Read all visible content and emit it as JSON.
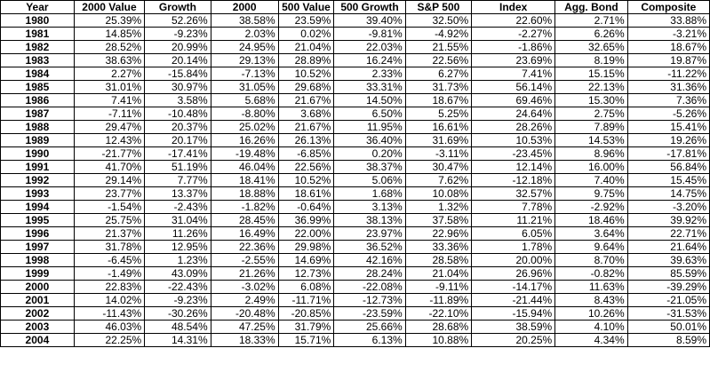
{
  "table": {
    "headers": [
      "Year",
      "2000 Value",
      "Growth",
      "2000",
      "500 Value",
      "500 Growth",
      "S&P 500",
      "Index",
      "Agg. Bond",
      "Composite"
    ],
    "rows": [
      [
        "1980",
        "25.39%",
        "52.26%",
        "38.58%",
        "23.59%",
        "39.40%",
        "32.50%",
        "22.60%",
        "2.71%",
        "33.88%"
      ],
      [
        "1981",
        "14.85%",
        "-9.23%",
        "2.03%",
        "0.02%",
        "-9.81%",
        "-4.92%",
        "-2.27%",
        "6.26%",
        "-3.21%"
      ],
      [
        "1982",
        "28.52%",
        "20.99%",
        "24.95%",
        "21.04%",
        "22.03%",
        "21.55%",
        "-1.86%",
        "32.65%",
        "18.67%"
      ],
      [
        "1983",
        "38.63%",
        "20.14%",
        "29.13%",
        "28.89%",
        "16.24%",
        "22.56%",
        "23.69%",
        "8.19%",
        "19.87%"
      ],
      [
        "1984",
        "2.27%",
        "-15.84%",
        "-7.13%",
        "10.52%",
        "2.33%",
        "6.27%",
        "7.41%",
        "15.15%",
        "-11.22%"
      ],
      [
        "1985",
        "31.01%",
        "30.97%",
        "31.05%",
        "29.68%",
        "33.31%",
        "31.73%",
        "56.14%",
        "22.13%",
        "31.36%"
      ],
      [
        "1986",
        "7.41%",
        "3.58%",
        "5.68%",
        "21.67%",
        "14.50%",
        "18.67%",
        "69.46%",
        "15.30%",
        "7.36%"
      ],
      [
        "1987",
        "-7.11%",
        "-10.48%",
        "-8.80%",
        "3.68%",
        "6.50%",
        "5.25%",
        "24.64%",
        "2.75%",
        "-5.26%"
      ],
      [
        "1988",
        "29.47%",
        "20.37%",
        "25.02%",
        "21.67%",
        "11.95%",
        "16.61%",
        "28.26%",
        "7.89%",
        "15.41%"
      ],
      [
        "1989",
        "12.43%",
        "20.17%",
        "16.26%",
        "26.13%",
        "36.40%",
        "31.69%",
        "10.53%",
        "14.53%",
        "19.26%"
      ],
      [
        "1990",
        "-21.77%",
        "-17.41%",
        "-19.48%",
        "-6.85%",
        "0.20%",
        "-3.11%",
        "-23.45%",
        "8.96%",
        "-17.81%"
      ],
      [
        "1991",
        "41.70%",
        "51.19%",
        "46.04%",
        "22.56%",
        "38.37%",
        "30.47%",
        "12.14%",
        "16.00%",
        "56.84%"
      ],
      [
        "1992",
        "29.14%",
        "7.77%",
        "18.41%",
        "10.52%",
        "5.06%",
        "7.62%",
        "-12.18%",
        "7.40%",
        "15.45%"
      ],
      [
        "1993",
        "23.77%",
        "13.37%",
        "18.88%",
        "18.61%",
        "1.68%",
        "10.08%",
        "32.57%",
        "9.75%",
        "14.75%"
      ],
      [
        "1994",
        "-1.54%",
        "-2.43%",
        "-1.82%",
        "-0.64%",
        "3.13%",
        "1.32%",
        "7.78%",
        "-2.92%",
        "-3.20%"
      ],
      [
        "1995",
        "25.75%",
        "31.04%",
        "28.45%",
        "36.99%",
        "38.13%",
        "37.58%",
        "11.21%",
        "18.46%",
        "39.92%"
      ],
      [
        "1996",
        "21.37%",
        "11.26%",
        "16.49%",
        "22.00%",
        "23.97%",
        "22.96%",
        "6.05%",
        "3.64%",
        "22.71%"
      ],
      [
        "1997",
        "31.78%",
        "12.95%",
        "22.36%",
        "29.98%",
        "36.52%",
        "33.36%",
        "1.78%",
        "9.64%",
        "21.64%"
      ],
      [
        "1998",
        "-6.45%",
        "1.23%",
        "-2.55%",
        "14.69%",
        "42.16%",
        "28.58%",
        "20.00%",
        "8.70%",
        "39.63%"
      ],
      [
        "1999",
        "-1.49%",
        "43.09%",
        "21.26%",
        "12.73%",
        "28.24%",
        "21.04%",
        "26.96%",
        "-0.82%",
        "85.59%"
      ],
      [
        "2000",
        "22.83%",
        "-22.43%",
        "-3.02%",
        "6.08%",
        "-22.08%",
        "-9.11%",
        "-14.17%",
        "11.63%",
        "-39.29%"
      ],
      [
        "2001",
        "14.02%",
        "-9.23%",
        "2.49%",
        "-11.71%",
        "-12.73%",
        "-11.89%",
        "-21.44%",
        "8.43%",
        "-21.05%"
      ],
      [
        "2002",
        "-11.43%",
        "-30.26%",
        "-20.48%",
        "-20.85%",
        "-23.59%",
        "-22.10%",
        "-15.94%",
        "10.26%",
        "-31.53%"
      ],
      [
        "2003",
        "46.03%",
        "48.54%",
        "47.25%",
        "31.79%",
        "25.66%",
        "28.68%",
        "38.59%",
        "4.10%",
        "50.01%"
      ],
      [
        "2004",
        "22.25%",
        "14.31%",
        "18.33%",
        "15.71%",
        "6.13%",
        "10.88%",
        "20.25%",
        "4.34%",
        "8.59%"
      ]
    ]
  }
}
